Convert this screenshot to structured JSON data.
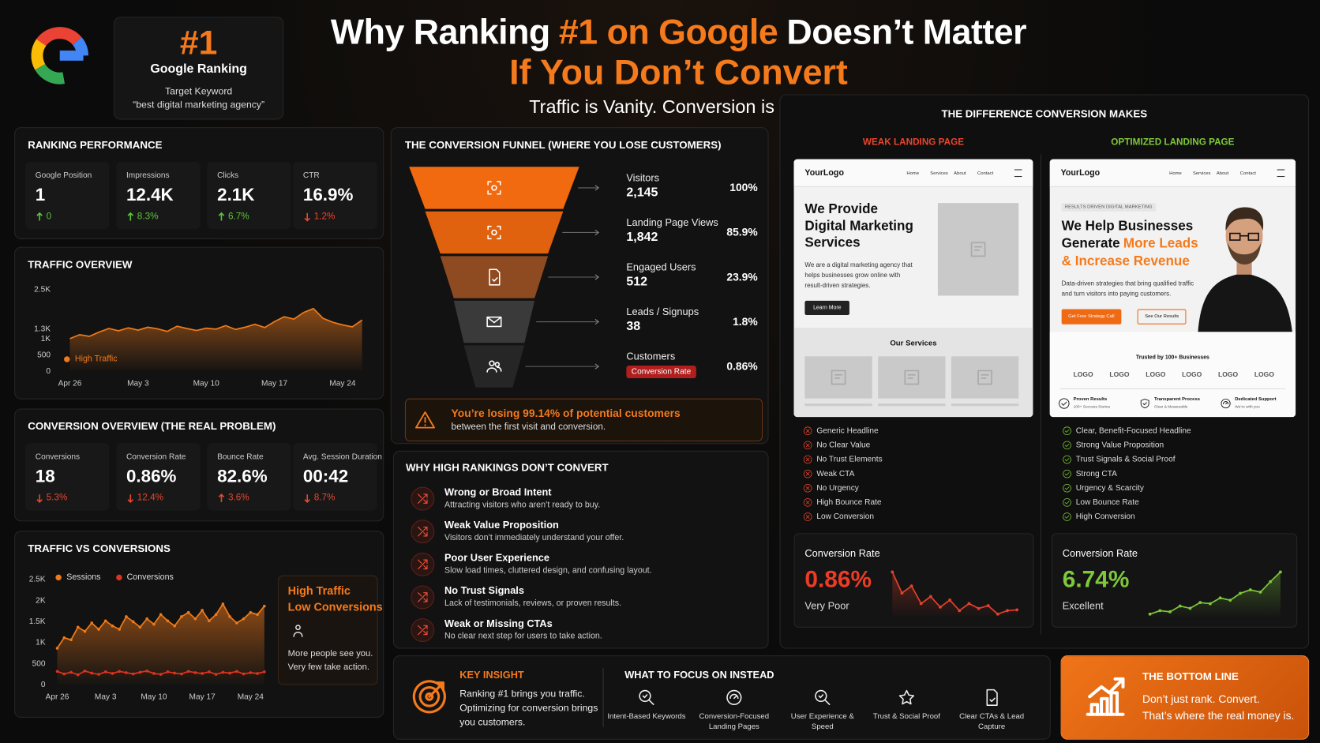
{
  "header": {
    "title_start": "Why Ranking",
    "title_highlight": "#1 on Google",
    "title_end": "Doesn’t Matter",
    "title_line2": "If You Don’t Convert",
    "tagline": "Traffic is Vanity. Conversion is Profit."
  },
  "rank_card": {
    "rank": "#1",
    "label": "Google Ranking",
    "keyword_label": "Target Keyword",
    "keyword": "“best digital marketing agency”"
  },
  "ranking_performance": {
    "title": "RANKING PERFORMANCE",
    "metrics": [
      {
        "label": "Google Position",
        "value": "1",
        "change": "0",
        "direction": "up",
        "good": true
      },
      {
        "label": "Impressions",
        "value": "12.4K",
        "change": "8.3%",
        "direction": "up",
        "good": true
      },
      {
        "label": "Clicks",
        "value": "2.1K",
        "change": "6.7%",
        "direction": "up",
        "good": true
      },
      {
        "label": "CTR",
        "value": "16.9%",
        "change": "1.2%",
        "direction": "down",
        "good": false
      }
    ]
  },
  "conversion_overview": {
    "title": "CONVERSION OVERVIEW (THE REAL PROBLEM)",
    "metrics": [
      {
        "label": "Conversions",
        "value": "18",
        "change": "5.3%",
        "direction": "down",
        "good": false
      },
      {
        "label": "Conversion Rate",
        "value": "0.86%",
        "change": "12.4%",
        "direction": "down",
        "good": false
      },
      {
        "label": "Bounce Rate",
        "value": "82.6%",
        "change": "3.6%",
        "direction": "up",
        "good": false
      },
      {
        "label": "Avg. Session Duration",
        "value": "00:42",
        "change": "8.7%",
        "direction": "down",
        "good": false
      }
    ]
  },
  "chart_data": [
    {
      "type": "line",
      "title": "TRAFFIC OVERVIEW",
      "x": [
        "Apr 26",
        "Apr 27",
        "Apr 28",
        "Apr 29",
        "Apr 30",
        "May 1",
        "May 2",
        "May 3",
        "May 4",
        "May 5",
        "May 6",
        "May 7",
        "May 8",
        "May 9",
        "May 10",
        "May 11",
        "May 12",
        "May 13",
        "May 14",
        "May 15",
        "May 16",
        "May 17",
        "May 18",
        "May 19",
        "May 20",
        "May 21",
        "May 22",
        "May 23",
        "May 24",
        "May 25",
        "May 26"
      ],
      "xticks": [
        "Apr 26",
        "May 3",
        "May 10",
        "May 17",
        "May 24"
      ],
      "ylim": [
        0,
        2500
      ],
      "yticks": [
        0,
        500,
        {
          "value": 1000,
          "label": "1K"
        },
        {
          "value": 1300,
          "label": "1.3K"
        },
        {
          "value": 2500,
          "label": "2.5K"
        }
      ],
      "series": [
        {
          "name": "High Traffic",
          "color": "#f07a1a",
          "values": [
            980,
            1100,
            1050,
            1180,
            1290,
            1220,
            1310,
            1240,
            1330,
            1280,
            1200,
            1360,
            1290,
            1230,
            1300,
            1270,
            1380,
            1260,
            1330,
            1420,
            1320,
            1500,
            1650,
            1580,
            1780,
            1900,
            1600,
            1480,
            1400,
            1340,
            1550
          ]
        }
      ]
    },
    {
      "type": "line",
      "title": "TRAFFIC VS CONVERSIONS",
      "x": [
        "Apr 26",
        "Apr 27",
        "Apr 28",
        "Apr 29",
        "Apr 30",
        "May 1",
        "May 2",
        "May 3",
        "May 4",
        "May 5",
        "May 6",
        "May 7",
        "May 8",
        "May 9",
        "May 10",
        "May 11",
        "May 12",
        "May 13",
        "May 14",
        "May 15",
        "May 16",
        "May 17",
        "May 18",
        "May 19",
        "May 20",
        "May 21",
        "May 22",
        "May 23",
        "May 24",
        "May 25",
        "May 26"
      ],
      "xticks": [
        "Apr 26",
        "May 3",
        "May 10",
        "May 17",
        "May 24"
      ],
      "ylim": [
        0,
        2500
      ],
      "yticks": [
        0,
        500,
        {
          "value": 1000,
          "label": "1K"
        },
        {
          "value": 1500,
          "label": "1.5K"
        },
        {
          "value": 2000,
          "label": "2K"
        },
        {
          "value": 2500,
          "label": "2.5K"
        }
      ],
      "series": [
        {
          "name": "Sessions",
          "color": "#f07a1a",
          "values": [
            850,
            1100,
            1050,
            1350,
            1250,
            1450,
            1300,
            1500,
            1380,
            1300,
            1600,
            1480,
            1350,
            1550,
            1420,
            1650,
            1500,
            1380,
            1600,
            1700,
            1550,
            1750,
            1500,
            1650,
            1900,
            1600,
            1450,
            1550,
            1700,
            1650,
            1850
          ]
        },
        {
          "name": "Conversions",
          "color": "#e0321e",
          "values": [
            300,
            240,
            280,
            220,
            310,
            260,
            230,
            290,
            250,
            300,
            270,
            240,
            280,
            310,
            250,
            230,
            290,
            260,
            240,
            300,
            270,
            250,
            290,
            230,
            280,
            260,
            300,
            240,
            270,
            250,
            290
          ]
        }
      ]
    },
    {
      "type": "sparkline",
      "series": [
        {
          "color": "#e8402a",
          "values": [
            1.4,
            1.1,
            1.2,
            0.95,
            1.05,
            0.9,
            1.0,
            0.85,
            0.95,
            0.88,
            0.92,
            0.8,
            0.85,
            0.86
          ]
        }
      ]
    },
    {
      "type": "sparkline",
      "series": [
        {
          "color": "#7ec83a",
          "values": [
            3.1,
            3.4,
            3.3,
            3.8,
            3.6,
            4.1,
            4.0,
            4.5,
            4.3,
            4.9,
            5.2,
            5.0,
            5.9,
            6.74
          ]
        }
      ]
    }
  ],
  "traffic_callout": {
    "line1": "High Traffic",
    "line2": "Low Conversions",
    "text1": "More people see you.",
    "text2": "Very few take action."
  },
  "funnel": {
    "title": "THE CONVERSION FUNNEL (WHERE YOU LOSE CUSTOMERS)",
    "stages": [
      {
        "name": "Visitors",
        "count": "2,145",
        "percent": "100%"
      },
      {
        "name": "Landing Page Views",
        "count": "1,842",
        "percent": "85.9%"
      },
      {
        "name": "Engaged Users",
        "count": "512",
        "percent": "23.9%"
      },
      {
        "name": "Leads / Signups",
        "count": "38",
        "percent": "1.8%"
      },
      {
        "name": "Customers",
        "badge": "Conversion Rate",
        "percent": "0.86%"
      }
    ],
    "alert": {
      "headline": "You’re losing 99.14% of potential customers",
      "text": "between the first visit and conversion."
    }
  },
  "reasons": {
    "title": "WHY HIGH RANKINGS DON’T CONVERT",
    "items": [
      {
        "title": "Wrong or Broad Intent",
        "text": "Attracting visitors who aren’t ready to buy."
      },
      {
        "title": "Weak Value Proposition",
        "text": "Visitors don’t immediately understand your offer."
      },
      {
        "title": "Poor User Experience",
        "text": "Slow load times, cluttered design, and confusing layout."
      },
      {
        "title": "No Trust Signals",
        "text": "Lack of testimonials, reviews, or proven results."
      },
      {
        "title": "Weak or Missing CTAs",
        "text": "No clear next step for users to take action."
      }
    ]
  },
  "comparison": {
    "title": "THE DIFFERENCE CONVERSION MAKES",
    "weak": {
      "label": "WEAK LANDING PAGE",
      "mockup": {
        "logo": "YourLogo",
        "nav": [
          "Home",
          "Services",
          "About",
          "Contact"
        ],
        "headline": "We Provide Digital Marketing Services",
        "text": "We are a digital marketing agency that helps businesses grow online with result-driven strategies.",
        "button": "Learn More",
        "section": "Our Services"
      },
      "checklist": [
        "Generic Headline",
        "No Clear Value",
        "No Trust Elements",
        "Weak CTA",
        "No Urgency",
        "High Bounce Rate",
        "Low Conversion"
      ],
      "rate_label": "Conversion Rate",
      "rate": "0.86%",
      "rating": "Very Poor"
    },
    "optimized": {
      "label": "OPTIMIZED LANDING PAGE",
      "mockup": {
        "logo": "YourLogo",
        "nav": [
          "Home",
          "Services",
          "About",
          "Contact"
        ],
        "badge": "RESULTS DRIVEN DIGITAL MARKETING",
        "headline_start": "We Help Businesses Generate",
        "headline_highlight": "More Leads & Increase Revenue",
        "text": "Data-driven strategies that bring qualified traffic and turn visitors into paying customers.",
        "button_primary": "Get Free Strategy Call",
        "button_secondary": "See Our Results",
        "trusted": "Trusted by 100+ Businesses",
        "logos": [
          "LOGO",
          "LOGO",
          "LOGO",
          "LOGO",
          "LOGO",
          "LOGO"
        ],
        "trust_items": [
          {
            "title": "Proven Results",
            "text": "100+ Success Stories"
          },
          {
            "title": "Transparent Process",
            "text": "Clear & Measurable"
          },
          {
            "title": "Dedicated Support",
            "text": "We’re with you"
          }
        ]
      },
      "checklist": [
        "Clear, Benefit-Focused Headline",
        "Strong Value Proposition",
        "Trust Signals & Social Proof",
        "Strong CTA",
        "Urgency & Scarcity",
        "Low Bounce Rate",
        "High Conversion"
      ],
      "rate_label": "Conversion Rate",
      "rate": "6.74%",
      "rating": "Excellent"
    }
  },
  "key_insight": {
    "title": "KEY INSIGHT",
    "text": "Ranking #1 brings you traffic. Optimizing for conversion brings you customers."
  },
  "focus": {
    "title": "WHAT TO FOCUS ON INSTEAD",
    "items": [
      "Intent-Based Keywords",
      "Conversion-Focused Landing Pages",
      "User Experience & Speed",
      "Trust & Social Proof",
      "Clear CTAs & Lead Capture"
    ]
  },
  "bottom_line": {
    "title": "THE BOTTOM LINE",
    "line1": "Don’t just rank. Convert.",
    "line2": "That’s where the real money is."
  }
}
